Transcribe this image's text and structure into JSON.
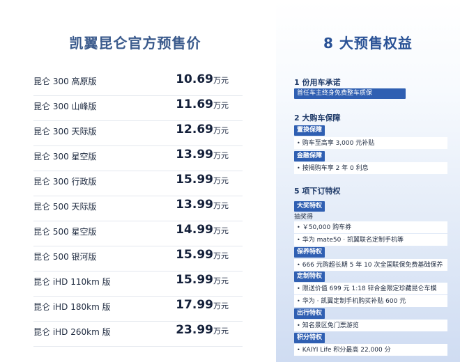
{
  "left": {
    "title": "凯翼昆仑官方预售价",
    "unit": "万元",
    "prices": [
      {
        "name": "昆仑 300 高原版",
        "price": "10.69"
      },
      {
        "name": "昆仑 300 山峰版",
        "price": "11.69"
      },
      {
        "name": "昆仑 300 天际版",
        "price": "12.69"
      },
      {
        "name": "昆仑 300 星空版",
        "price": "13.99"
      },
      {
        "name": "昆仑 300 行政版",
        "price": "15.99"
      },
      {
        "name": "昆仑 500 天际版",
        "price": "13.99"
      },
      {
        "name": "昆仑 500 星空版",
        "price": "14.99"
      },
      {
        "name": "昆仑 500 银河版",
        "price": "15.99"
      },
      {
        "name": "昆仑 iHD 110km 版",
        "price": "15.99"
      },
      {
        "name": "昆仑 iHD 180km 版",
        "price": "17.99"
      },
      {
        "name": "昆仑 iHD 260km 版",
        "price": "23.99"
      }
    ]
  },
  "right": {
    "title": "8 大预售权益",
    "bullet": "•",
    "sec1": {
      "head": "1 份用车承诺",
      "pill": "首任车主终身免费整车质保"
    },
    "sec2": {
      "head": "2 大购车保障",
      "tag1": "置换保障",
      "item1": "购车至高享 3,000 元补贴",
      "tag2": "金融保障",
      "item2": "按揭购车享 2 年 0 利息"
    },
    "sec3": {
      "head": "5 项下订特权",
      "tag_lottery": "大奖特权",
      "lottery_note": "抽奖得",
      "lottery_item1": "￥50,000 购车券",
      "lottery_item2": "华为 mate50 · 凯翼联名定制手机等",
      "tag_maint": "保养特权",
      "maint_item": "666 元购超长期 5 年 10 次全国联保免费基础保养",
      "tag_custom": "定制特权",
      "custom_item1": "限送价值 699 元 1:18 锌合金限定珍藏昆仑车模",
      "custom_item2": "华为 · 凯翼定制手机购买补贴 600 元",
      "tag_travel": "出行特权",
      "travel_item": "知名景区免门票游览",
      "tag_points": "积分特权",
      "points_item": "KAIYI Life 积分最高 22,000 分"
    }
  }
}
